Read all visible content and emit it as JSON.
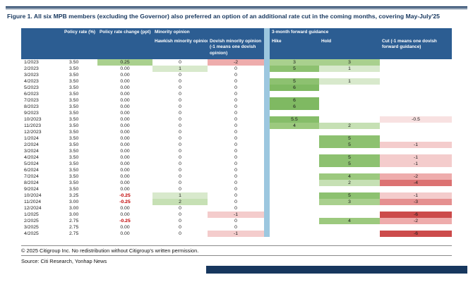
{
  "figure": {
    "title": "Figure 1. All six MPB members (excluding the Governor) also preferred an option of an additional rate cut in the coming months, covering May-July'25",
    "copyright": "© 2025 Citigroup Inc. No redistribution without Citigroup's written permission.",
    "source": "Source: Citi Research, Yonhap News"
  },
  "colors": {
    "header_bg": "#2c5d92",
    "divider_band": "#9cc7df",
    "rule_navy": "#17375e",
    "positive_green_mid": "#a9d08e",
    "negative_red_text": "#c00000",
    "negative_red_deep": "#cc4b4b"
  },
  "chart_data": {
    "type": "table",
    "header": {
      "group_policy_rate": "Policy rate (%)",
      "group_policy_change": "Policy rate change (ppt)",
      "group_minority": "Minority opinion",
      "group_guidance": "3-month forward guidance",
      "col_hawkish": "Hawkish minority opinion",
      "col_dovish": "Dovish minority opinion (-1 means one dovish opinion)",
      "col_hike": "Hike",
      "col_hold": "Hold",
      "col_cut": "Cut (-1 means one dovish forward guidance)"
    },
    "rows": [
      {
        "date": "1/2023",
        "rate": "3.50",
        "change": "0.25",
        "hawkish": "0",
        "dovish": "-2",
        "hike": "3",
        "hold": "3",
        "cut": ""
      },
      {
        "date": "2/2023",
        "rate": "3.50",
        "change": "0.00",
        "hawkish": "1",
        "dovish": "0",
        "hike": "5",
        "hold": "1",
        "cut": ""
      },
      {
        "date": "3/2023",
        "rate": "3.50",
        "change": "0.00",
        "hawkish": "0",
        "dovish": "0",
        "hike": "",
        "hold": "",
        "cut": ""
      },
      {
        "date": "4/2023",
        "rate": "3.50",
        "change": "0.00",
        "hawkish": "0",
        "dovish": "0",
        "hike": "5",
        "hold": "1",
        "cut": ""
      },
      {
        "date": "5/2023",
        "rate": "3.50",
        "change": "0.00",
        "hawkish": "0",
        "dovish": "0",
        "hike": "6",
        "hold": "",
        "cut": ""
      },
      {
        "date": "6/2023",
        "rate": "3.50",
        "change": "0.00",
        "hawkish": "0",
        "dovish": "0",
        "hike": "",
        "hold": "",
        "cut": ""
      },
      {
        "date": "7/2023",
        "rate": "3.50",
        "change": "0.00",
        "hawkish": "0",
        "dovish": "0",
        "hike": "6",
        "hold": "",
        "cut": ""
      },
      {
        "date": "8/2023",
        "rate": "3.50",
        "change": "0.00",
        "hawkish": "0",
        "dovish": "0",
        "hike": "6",
        "hold": "",
        "cut": ""
      },
      {
        "date": "9/2023",
        "rate": "3.50",
        "change": "0.00",
        "hawkish": "0",
        "dovish": "0",
        "hike": "",
        "hold": "",
        "cut": ""
      },
      {
        "date": "10/2023",
        "rate": "3.50",
        "change": "0.00",
        "hawkish": "0",
        "dovish": "0",
        "hike": "5.5",
        "hold": "",
        "cut": "-0.5"
      },
      {
        "date": "11/2023",
        "rate": "3.50",
        "change": "0.00",
        "hawkish": "0",
        "dovish": "0",
        "hike": "4",
        "hold": "2",
        "cut": ""
      },
      {
        "date": "12/2023",
        "rate": "3.50",
        "change": "0.00",
        "hawkish": "0",
        "dovish": "0",
        "hike": "",
        "hold": "",
        "cut": ""
      },
      {
        "date": "1/2024",
        "rate": "3.50",
        "change": "0.00",
        "hawkish": "0",
        "dovish": "0",
        "hike": "",
        "hold": "5",
        "cut": ""
      },
      {
        "date": "2/2024",
        "rate": "3.50",
        "change": "0.00",
        "hawkish": "0",
        "dovish": "0",
        "hike": "",
        "hold": "5",
        "cut": "-1"
      },
      {
        "date": "3/2024",
        "rate": "3.50",
        "change": "0.00",
        "hawkish": "0",
        "dovish": "0",
        "hike": "",
        "hold": "",
        "cut": ""
      },
      {
        "date": "4/2024",
        "rate": "3.50",
        "change": "0.00",
        "hawkish": "0",
        "dovish": "0",
        "hike": "",
        "hold": "5",
        "cut": "-1"
      },
      {
        "date": "5/2024",
        "rate": "3.50",
        "change": "0.00",
        "hawkish": "0",
        "dovish": "0",
        "hike": "",
        "hold": "5",
        "cut": "-1"
      },
      {
        "date": "6/2024",
        "rate": "3.50",
        "change": "0.00",
        "hawkish": "0",
        "dovish": "0",
        "hike": "",
        "hold": "",
        "cut": ""
      },
      {
        "date": "7/2024",
        "rate": "3.50",
        "change": "0.00",
        "hawkish": "0",
        "dovish": "0",
        "hike": "",
        "hold": "4",
        "cut": "-2"
      },
      {
        "date": "8/2024",
        "rate": "3.50",
        "change": "0.00",
        "hawkish": "0",
        "dovish": "0",
        "hike": "",
        "hold": "2",
        "cut": "-4"
      },
      {
        "date": "9/2024",
        "rate": "3.50",
        "change": "0.00",
        "hawkish": "0",
        "dovish": "0",
        "hike": "",
        "hold": "",
        "cut": ""
      },
      {
        "date": "10/2024",
        "rate": "3.25",
        "change": "-0.25",
        "hawkish": "1",
        "dovish": "0",
        "hike": "",
        "hold": "5",
        "cut": "-1"
      },
      {
        "date": "11/2024",
        "rate": "3.00",
        "change": "-0.25",
        "hawkish": "2",
        "dovish": "0",
        "hike": "",
        "hold": "3",
        "cut": "-3"
      },
      {
        "date": "12/2024",
        "rate": "3.00",
        "change": "0.00",
        "hawkish": "0",
        "dovish": "0",
        "hike": "",
        "hold": "",
        "cut": ""
      },
      {
        "date": "1/2025",
        "rate": "3.00",
        "change": "0.00",
        "hawkish": "0",
        "dovish": "-1",
        "hike": "",
        "hold": "",
        "cut": "-6"
      },
      {
        "date": "2/2025",
        "rate": "2.75",
        "change": "-0.25",
        "hawkish": "0",
        "dovish": "0",
        "hike": "",
        "hold": "4",
        "cut": "-2"
      },
      {
        "date": "3/2025",
        "rate": "2.75",
        "change": "0.00",
        "hawkish": "0",
        "dovish": "0",
        "hike": "",
        "hold": "",
        "cut": ""
      },
      {
        "date": "4/2025",
        "rate": "2.75",
        "change": "0.00",
        "hawkish": "0",
        "dovish": "-1",
        "hike": "",
        "hold": "",
        "cut": "-6"
      }
    ]
  }
}
